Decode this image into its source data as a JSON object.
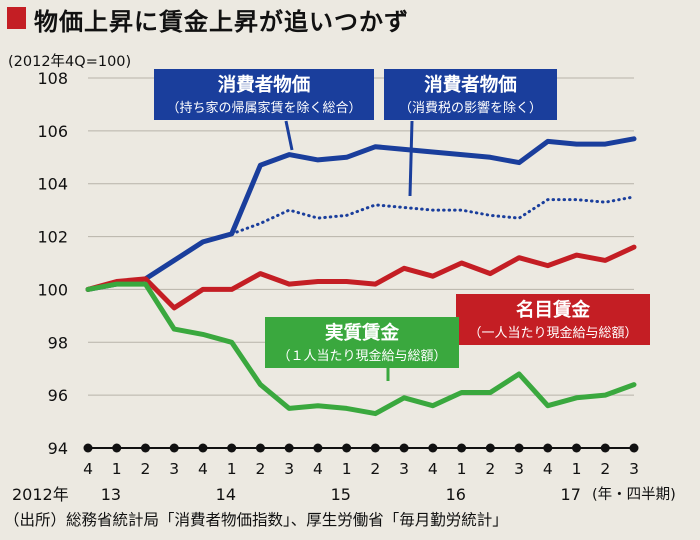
{
  "title": "物価上昇に賃金上昇が追いつかず",
  "source": "（出所）総務省統計局「消費者物価指数」、厚生労働省「毎月勤労統計」",
  "colors": {
    "title_mark": "#c41e24",
    "blue": "#1a3e9c",
    "red": "#c41e24",
    "green": "#3aa83e",
    "background": "#ece9e1"
  },
  "chart_data": {
    "type": "line",
    "ylabel": "(2012年4Q=100)",
    "ylim": [
      94,
      108
    ],
    "yticks": [
      94,
      96,
      98,
      100,
      102,
      104,
      106,
      108
    ],
    "x_quarters": [
      "4",
      "1",
      "2",
      "3",
      "4",
      "1",
      "2",
      "3",
      "4",
      "1",
      "2",
      "3",
      "4",
      "1",
      "2",
      "3",
      "4",
      "1",
      "2",
      "3"
    ],
    "x_years": [
      {
        "label": "2012年",
        "index": 0
      },
      {
        "label": "13",
        "index": 1
      },
      {
        "label": "14",
        "index": 5
      },
      {
        "label": "15",
        "index": 9
      },
      {
        "label": "16",
        "index": 13
      },
      {
        "label": "17",
        "index": 17
      }
    ],
    "x_unit": "(年・四半期)",
    "grid": "horizontal",
    "series": [
      {
        "key": "cpi_rent",
        "name": "消費者物価",
        "sub": "（持ち家の帰属家賃を除く総合）",
        "color": "#1a3e9c",
        "style": "solid",
        "values": [
          100.0,
          100.2,
          100.4,
          101.1,
          101.8,
          102.1,
          104.7,
          105.1,
          104.9,
          105.0,
          105.4,
          105.3,
          105.2,
          105.1,
          105.0,
          104.8,
          105.6,
          105.5,
          105.5,
          105.7
        ]
      },
      {
        "key": "cpi_tax",
        "name": "消費者物価",
        "sub": "（消費税の影響を除く）",
        "color": "#1a3e9c",
        "style": "dotted",
        "start_index": 5,
        "values": [
          102.1,
          102.5,
          103.0,
          102.7,
          102.8,
          103.2,
          103.1,
          103.0,
          103.0,
          102.8,
          102.7,
          103.4,
          103.4,
          103.3,
          103.5
        ]
      },
      {
        "key": "nominal",
        "name": "名目賃金",
        "sub": "（一人当たり現金給与総額）",
        "color": "#c41e24",
        "style": "solid",
        "values": [
          100.0,
          100.3,
          100.4,
          99.3,
          100.0,
          100.0,
          100.6,
          100.2,
          100.3,
          100.3,
          100.2,
          100.8,
          100.5,
          101.0,
          100.6,
          101.2,
          100.9,
          101.3,
          101.1,
          101.6
        ]
      },
      {
        "key": "real",
        "name": "実質賃金",
        "sub": "（１人当たり現金給与総額）",
        "color": "#3aa83e",
        "style": "solid",
        "values": [
          100.0,
          100.2,
          100.2,
          98.5,
          98.3,
          98.0,
          96.4,
          95.5,
          95.6,
          95.5,
          95.3,
          95.9,
          95.6,
          96.1,
          96.1,
          96.8,
          95.6,
          95.9,
          96.0,
          96.4
        ]
      }
    ]
  }
}
